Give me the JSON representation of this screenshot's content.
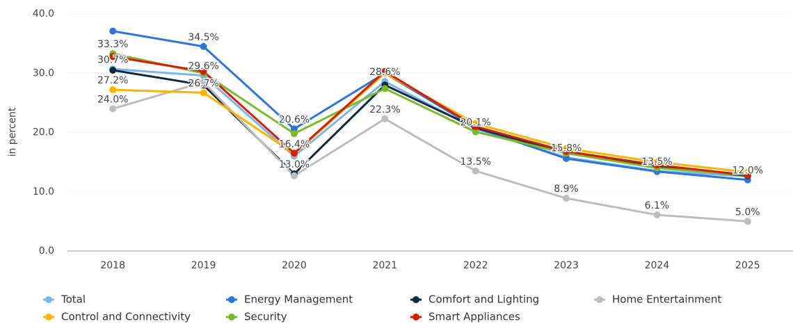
{
  "chart_data": {
    "type": "line",
    "y_label": "in percent",
    "categories": [
      "2018",
      "2019",
      "2020",
      "2021",
      "2022",
      "2023",
      "2024",
      "2025"
    ],
    "ylim": [
      0,
      40
    ],
    "yticks": [
      {
        "value": 0,
        "label": "0.0"
      },
      {
        "value": 10,
        "label": "10.0"
      },
      {
        "value": 20,
        "label": "20.0"
      },
      {
        "value": 30,
        "label": "30.0"
      },
      {
        "value": 40,
        "label": "40.0"
      }
    ],
    "grid": true,
    "legend": "bottom",
    "series": [
      {
        "name": "Total",
        "color": "#7cb5ec",
        "values": [
          30.7,
          29.6,
          16.0,
          28.6,
          20.6,
          15.8,
          13.5,
          12.6
        ],
        "value_labels": [
          "30.7%",
          "29.6%",
          null,
          "28.6%",
          null,
          "15.8%",
          "13.5%",
          null
        ]
      },
      {
        "name": "Energy Management",
        "color": "#2f74d8",
        "values": [
          37.1,
          34.5,
          20.6,
          30.0,
          20.8,
          15.6,
          13.4,
          12.0
        ],
        "value_labels": [
          null,
          "34.5%",
          "20.6%",
          null,
          null,
          null,
          null,
          "12.0%"
        ]
      },
      {
        "name": "Comfort and Lighting",
        "color": "#0d2a3f",
        "values": [
          30.5,
          28.0,
          13.0,
          28.0,
          20.8,
          16.5,
          14.2,
          12.7
        ],
        "value_labels": [
          null,
          null,
          "13.0%",
          null,
          null,
          null,
          null,
          null
        ]
      },
      {
        "name": "Home Entertainment",
        "color": "#bdbdbd",
        "values": [
          24.0,
          28.5,
          12.7,
          22.3,
          13.5,
          8.9,
          6.1,
          5.0
        ],
        "value_labels": [
          "24.0%",
          null,
          null,
          "22.3%",
          "13.5%",
          "8.9%",
          "6.1%",
          "5.0%"
        ]
      },
      {
        "name": "Control and Connectivity",
        "color": "#ffb400",
        "values": [
          27.2,
          26.7,
          16.4,
          30.0,
          21.5,
          17.3,
          15.0,
          13.3
        ],
        "value_labels": [
          "27.2%",
          "26.7%",
          "16.4%",
          null,
          null,
          null,
          null,
          null
        ]
      },
      {
        "name": "Security",
        "color": "#7cb82f",
        "values": [
          33.3,
          30.0,
          19.8,
          27.4,
          20.1,
          16.5,
          14.0,
          12.8
        ],
        "value_labels": [
          "33.3%",
          null,
          null,
          null,
          "20.1%",
          null,
          null,
          null
        ]
      },
      {
        "name": "Smart Appliances",
        "color": "#d31f00",
        "values": [
          32.8,
          30.3,
          16.5,
          30.3,
          21.0,
          16.8,
          14.5,
          12.8
        ],
        "value_labels": [
          null,
          null,
          null,
          null,
          null,
          null,
          null,
          null
        ]
      }
    ]
  }
}
